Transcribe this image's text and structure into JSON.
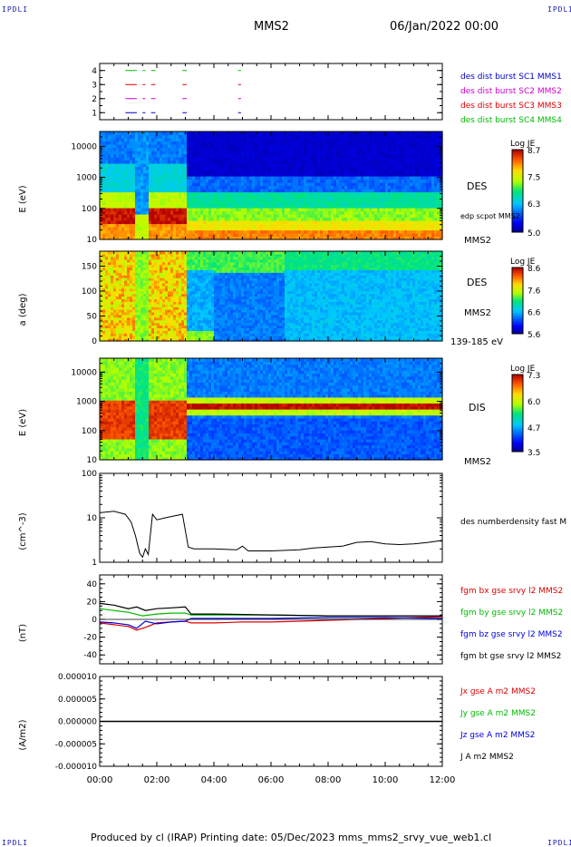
{
  "header": {
    "corner_tl": "IPDLI",
    "corner_tr": "IPDLI",
    "corner_bl": "IPDLI",
    "corner_br": "IPDLI",
    "spacecraft": "MMS2",
    "date": "06/Jan/2022 00:00"
  },
  "footer": {
    "text": "Produced by cl (IRAP)   Printing date: 05/Dec/2023   mms_mms2_srvy_vue_web1.cl"
  },
  "colors": {
    "mms1": "#0000cc",
    "mms2": "#cc00cc",
    "mms3": "#dd0000",
    "mms4": "#00bb00",
    "bx": "#dd0000",
    "by": "#00bb00",
    "bz": "#0000dd",
    "bt": "#000000"
  },
  "chart_data": [
    {
      "id": "availability",
      "type": "scatter",
      "ylim": [
        0.5,
        4.5
      ],
      "yticks": [
        "1",
        "2",
        "3",
        "4"
      ],
      "legend": [
        {
          "label": "des dist burst SC1 MMS1",
          "color": "#0000cc"
        },
        {
          "label": "des dist burst SC2 MMS2",
          "color": "#cc00cc"
        },
        {
          "label": "des dist burst SC3 MMS3",
          "color": "#dd0000"
        },
        {
          "label": "des dist burst SC4 MMS4",
          "color": "#00bb00"
        }
      ],
      "segments_hours": [
        [
          0.9,
          1.3
        ],
        [
          1.5,
          1.6
        ],
        [
          1.8,
          1.95
        ],
        [
          2.9,
          3.05
        ],
        [
          4.85,
          4.95
        ]
      ]
    },
    {
      "id": "des-energy",
      "type": "heatmap",
      "ylabel": "E (eV)",
      "scale": "log",
      "ylim": [
        10,
        30000
      ],
      "yticks": [
        "10",
        "100",
        "1000",
        "10000"
      ],
      "colorbar": {
        "title": "Log JE",
        "ticks": [
          "8.7",
          "7.5",
          "6.3",
          "5.0"
        ],
        "range": [
          5.0,
          8.7
        ]
      },
      "labels": [
        "DES",
        "edp scpot MMS2",
        "MMS2"
      ]
    },
    {
      "id": "des-pitch",
      "type": "heatmap",
      "ylabel": "a (deg)",
      "ylim": [
        0,
        180
      ],
      "yticks": [
        "0",
        "50",
        "100",
        "150"
      ],
      "colorbar": {
        "title": "Log JE",
        "ticks": [
          "8.6",
          "7.6",
          "6.6",
          "5.6"
        ],
        "range": [
          5.6,
          8.6
        ]
      },
      "labels": [
        "DES",
        "MMS2",
        "139-185 eV"
      ]
    },
    {
      "id": "dis-energy",
      "type": "heatmap",
      "ylabel": "E (eV)",
      "scale": "log",
      "ylim": [
        10,
        30000
      ],
      "yticks": [
        "10",
        "100",
        "1000",
        "10000"
      ],
      "colorbar": {
        "title": "Log JE",
        "ticks": [
          "7.3",
          "6.0",
          "4.7",
          "3.5"
        ],
        "range": [
          3.5,
          7.3
        ]
      },
      "labels": [
        "DIS",
        "MMS2"
      ]
    },
    {
      "id": "density",
      "type": "line",
      "ylabel": "(cm^-3)",
      "scale": "log",
      "ylim": [
        1,
        100
      ],
      "yticks": [
        "1",
        "10",
        "100"
      ],
      "legend": [
        {
          "label": "des numberdensity fast M",
          "color": "#000000"
        }
      ],
      "series": [
        {
          "name": "des numberdensity fast M",
          "x": [
            0,
            0.5,
            0.9,
            1.1,
            1.25,
            1.4,
            1.5,
            1.6,
            1.7,
            1.85,
            2.0,
            2.3,
            2.6,
            2.9,
            3.1,
            3.3,
            4.0,
            4.8,
            5.0,
            5.2,
            6.0,
            7.0,
            7.5,
            8.0,
            8.5,
            9.0,
            9.5,
            10.0,
            10.5,
            11.0,
            11.5,
            12.0
          ],
          "y": [
            13,
            14,
            12,
            8,
            4,
            1.6,
            1.3,
            2.0,
            1.5,
            12,
            9,
            10,
            11,
            12,
            2.2,
            2.0,
            2.0,
            1.9,
            2.3,
            1.8,
            1.8,
            1.9,
            2.1,
            2.2,
            2.3,
            2.8,
            2.9,
            2.6,
            2.5,
            2.6,
            2.8,
            3.1
          ]
        }
      ]
    },
    {
      "id": "magnetic-field",
      "type": "line",
      "ylabel": "(nT)",
      "ylim": [
        -50,
        50
      ],
      "yticks": [
        "-40",
        "-20",
        "0",
        "20",
        "40"
      ],
      "legend": [
        {
          "label": "fgm bx gse srvy l2 MMS2",
          "color": "#dd0000"
        },
        {
          "label": "fgm by gse srvy l2 MMS2",
          "color": "#00bb00"
        },
        {
          "label": "fgm bz gse srvy l2 MMS2",
          "color": "#0000dd"
        },
        {
          "label": "fgm bt gse srvy l2 MMS2",
          "color": "#000000"
        }
      ],
      "series": [
        {
          "name": "fgm bx gse srvy l2 MMS2",
          "color": "#dd0000",
          "x": [
            0,
            0.5,
            1.0,
            1.3,
            1.6,
            2.0,
            2.5,
            3.0,
            3.2,
            4.0,
            5.0,
            6.0,
            7.0,
            8.0,
            9.0,
            10.0,
            11.0,
            12.0
          ],
          "y": [
            -4,
            -6,
            -8,
            -12,
            -9,
            -4,
            -3,
            -2,
            -4,
            -4,
            -3,
            -3,
            -2,
            -1,
            0,
            1,
            2,
            3
          ]
        },
        {
          "name": "fgm by gse srvy l2 MMS2",
          "color": "#00bb00",
          "x": [
            0,
            0.5,
            1.0,
            1.5,
            2.0,
            2.5,
            3.0,
            3.2,
            4.0,
            6.0,
            8.0,
            10.0,
            12.0
          ],
          "y": [
            12,
            10,
            8,
            4,
            6,
            7,
            7,
            5,
            5,
            5,
            4,
            4,
            4
          ]
        },
        {
          "name": "fgm bz gse srvy l2 MMS2",
          "color": "#0000dd",
          "x": [
            0,
            0.5,
            1.0,
            1.3,
            1.6,
            2.0,
            2.5,
            3.0,
            3.2,
            4.0,
            6.0,
            8.0,
            10.0,
            12.0
          ],
          "y": [
            -3,
            -4,
            -6,
            -10,
            -2,
            -5,
            -3,
            -2,
            1,
            1,
            1,
            2,
            2,
            1
          ]
        },
        {
          "name": "fgm bt gse srvy l2 MMS2",
          "color": "#000000",
          "x": [
            0,
            0.5,
            1.0,
            1.3,
            1.6,
            2.0,
            2.5,
            3.0,
            3.2,
            4.0,
            6.0,
            8.0,
            10.0,
            12.0
          ],
          "y": [
            18,
            16,
            12,
            14,
            10,
            12,
            13,
            14,
            6,
            6,
            5,
            4,
            4,
            4
          ]
        }
      ]
    },
    {
      "id": "current-density",
      "type": "line",
      "ylabel": "(A/m2)",
      "ylim": [
        -1e-05,
        1e-05
      ],
      "yticks": [
        "-0.000010",
        "-0.000005",
        "0.000000",
        "0.000005",
        "0.000010"
      ],
      "legend": [
        {
          "label": "Jx gse A m2 MMS2",
          "color": "#dd0000"
        },
        {
          "label": "Jy gse A m2 MMS2",
          "color": "#00bb00"
        },
        {
          "label": "Jz gse A m2 MMS2",
          "color": "#0000dd"
        },
        {
          "label": "J A m2 MMS2",
          "color": "#000000"
        }
      ],
      "series": [
        {
          "name": "J A m2 MMS2",
          "color": "#000000",
          "x": [
            0,
            1,
            2,
            3,
            4,
            5,
            6,
            7,
            8,
            9,
            10,
            11,
            12
          ],
          "y": [
            0,
            0,
            0,
            0,
            0,
            0,
            0,
            0,
            0,
            0,
            0,
            0,
            0
          ]
        }
      ]
    }
  ],
  "time_axis": {
    "range_hours": [
      0,
      12
    ],
    "ticks": [
      "00:00",
      "02:00",
      "04:00",
      "06:00",
      "08:00",
      "10:00",
      "12:00"
    ]
  }
}
